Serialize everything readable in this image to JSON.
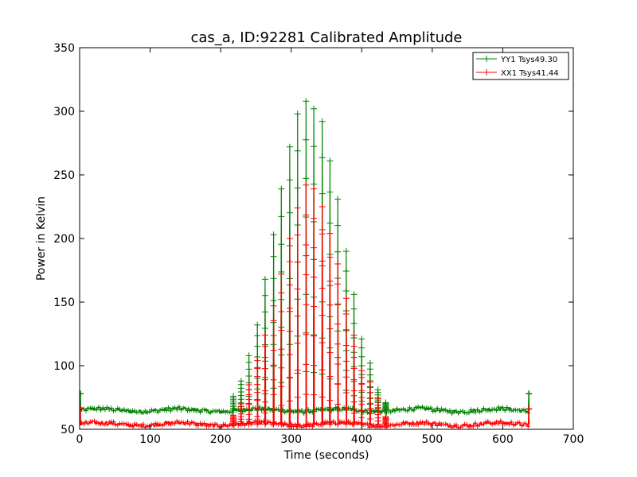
{
  "chart_data": {
    "type": "line",
    "title": "cas_a, ID:92281 Calibrated Amplitude",
    "xlabel": "Time (seconds)",
    "ylabel": "Power in Kelvin",
    "xlim": [
      0,
      700
    ],
    "ylim": [
      50,
      350
    ],
    "xticks": [
      0,
      100,
      200,
      300,
      400,
      500,
      600,
      700
    ],
    "yticks": [
      50,
      100,
      150,
      200,
      250,
      300,
      350
    ],
    "grid": false,
    "legend_position": "top-right",
    "marker": "+",
    "series": [
      {
        "name": "YY1 Tsys49.30",
        "color": "#008000",
        "baseline": 65,
        "baseline_start": 0,
        "baseline_end": 638,
        "edge_points": [
          {
            "x": 1,
            "y": 78
          },
          {
            "x": 637,
            "y": 78
          }
        ],
        "peaks": [
          {
            "x": 218,
            "y": 76
          },
          {
            "x": 229,
            "y": 88
          },
          {
            "x": 240,
            "y": 108
          },
          {
            "x": 252,
            "y": 132
          },
          {
            "x": 263,
            "y": 168
          },
          {
            "x": 275,
            "y": 203
          },
          {
            "x": 286,
            "y": 239
          },
          {
            "x": 298,
            "y": 272
          },
          {
            "x": 309,
            "y": 298
          },
          {
            "x": 321,
            "y": 308
          },
          {
            "x": 332,
            "y": 302
          },
          {
            "x": 344,
            "y": 292
          },
          {
            "x": 355,
            "y": 261
          },
          {
            "x": 366,
            "y": 231
          },
          {
            "x": 378,
            "y": 190
          },
          {
            "x": 389,
            "y": 156
          },
          {
            "x": 400,
            "y": 121
          },
          {
            "x": 412,
            "y": 102
          },
          {
            "x": 423,
            "y": 81
          },
          {
            "x": 434,
            "y": 71
          }
        ]
      },
      {
        "name": "XX1 Tsys41.44",
        "color": "#ff0000",
        "baseline": 54,
        "baseline_start": 0,
        "baseline_end": 638,
        "edge_points": [
          {
            "x": 1,
            "y": 66
          },
          {
            "x": 637,
            "y": 66
          }
        ],
        "peaks": [
          {
            "x": 218,
            "y": 61
          },
          {
            "x": 229,
            "y": 70
          },
          {
            "x": 240,
            "y": 85
          },
          {
            "x": 252,
            "y": 104
          },
          {
            "x": 263,
            "y": 124
          },
          {
            "x": 275,
            "y": 147
          },
          {
            "x": 286,
            "y": 172
          },
          {
            "x": 298,
            "y": 200
          },
          {
            "x": 309,
            "y": 224
          },
          {
            "x": 321,
            "y": 242
          },
          {
            "x": 332,
            "y": 239
          },
          {
            "x": 344,
            "y": 225
          },
          {
            "x": 355,
            "y": 204
          },
          {
            "x": 366,
            "y": 180
          },
          {
            "x": 378,
            "y": 153
          },
          {
            "x": 389,
            "y": 124
          },
          {
            "x": 400,
            "y": 96
          },
          {
            "x": 412,
            "y": 87
          },
          {
            "x": 423,
            "y": 74
          },
          {
            "x": 434,
            "y": 60
          }
        ]
      }
    ]
  }
}
